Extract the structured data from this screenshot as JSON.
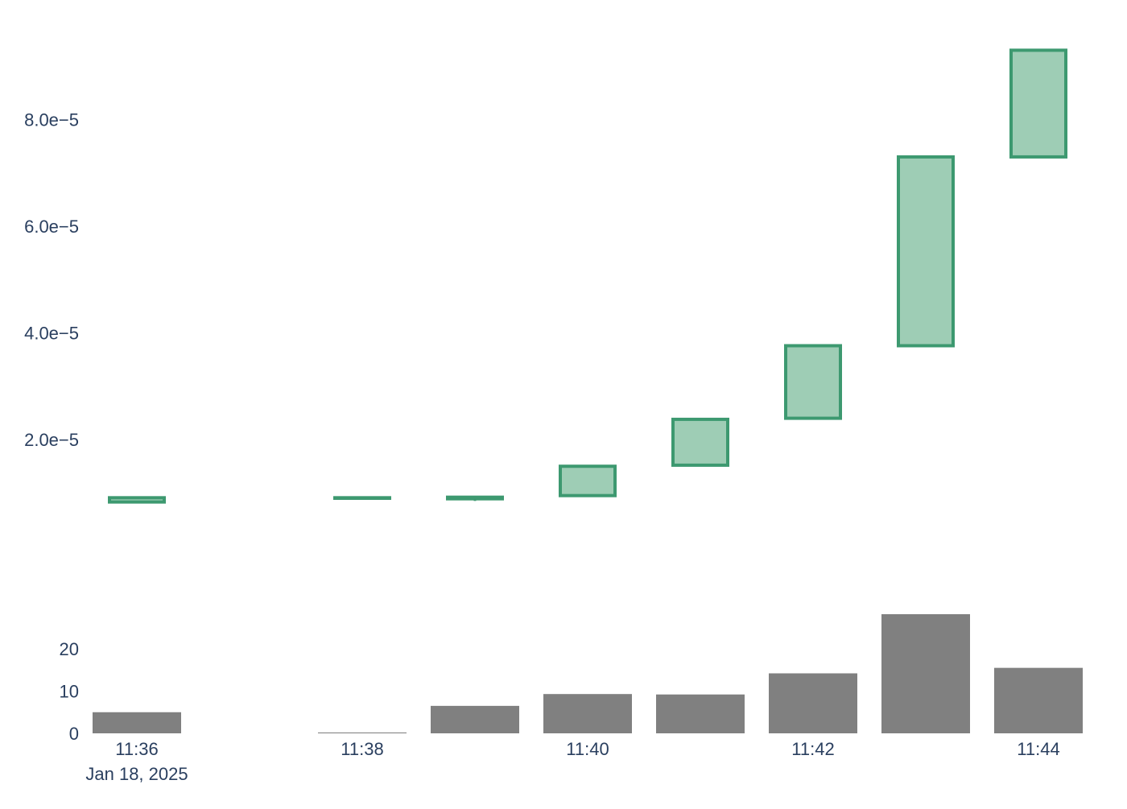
{
  "colors": {
    "increasing_line": "#3d9970",
    "increasing_fill": "#9ecdb5",
    "volume_bar": "#808080",
    "tick_text": "#2a3f5f",
    "background": "#ffffff"
  },
  "chart_data": [
    {
      "type": "candlestick",
      "x": [
        "11:36",
        "11:38",
        "11:39",
        "11:40",
        "11:41",
        "11:42",
        "11:43",
        "11:44"
      ],
      "open": [
        8.3e-06,
        9e-06,
        8.9e-06,
        9.5e-06,
        1.52e-05,
        2.4e-05,
        3.76e-05,
        7.3e-05
      ],
      "high": [
        9.1e-06,
        9.1e-06,
        9.3e-06,
        1.5e-05,
        2.38e-05,
        3.76e-05,
        7.3e-05,
        9.3e-05
      ],
      "low": [
        8.3e-06,
        9e-06,
        8.5e-06,
        9.5e-06,
        1.52e-05,
        2.4e-05,
        3.76e-05,
        7.3e-05
      ],
      "close": [
        9.1e-06,
        9.1e-06,
        9.2e-06,
        1.5e-05,
        2.38e-05,
        3.76e-05,
        7.3e-05,
        9.3e-05
      ],
      "ylim": [
        -7e-06,
        9.94e-05
      ],
      "yticks": [
        {
          "value": 2e-05,
          "label": "2.0e−5"
        },
        {
          "value": 4e-05,
          "label": "4.0e−5"
        },
        {
          "value": 6e-05,
          "label": "6.0e−5"
        },
        {
          "value": 8e-05,
          "label": "8.0e−5"
        }
      ],
      "grid": false
    },
    {
      "type": "bar",
      "x": [
        "11:36",
        "11:38",
        "11:39",
        "11:40",
        "11:41",
        "11:42",
        "11:43",
        "11:44"
      ],
      "values": [
        5,
        0.2,
        6.5,
        9.3,
        9.2,
        14.2,
        28.2,
        15.5
      ],
      "ylim": [
        0,
        28.2
      ],
      "yticks": [
        {
          "value": 0,
          "label": "0"
        },
        {
          "value": 10,
          "label": "10"
        },
        {
          "value": 20,
          "label": "20"
        }
      ],
      "xticks": [
        {
          "value": "11:36",
          "label": "11:36"
        },
        {
          "value": "11:38",
          "label": "11:38"
        },
        {
          "value": "11:40",
          "label": "11:40"
        },
        {
          "value": "11:42",
          "label": "11:42"
        },
        {
          "value": "11:44",
          "label": "11:44"
        }
      ],
      "date_label": "Jan 18, 2025",
      "grid": false
    }
  ]
}
